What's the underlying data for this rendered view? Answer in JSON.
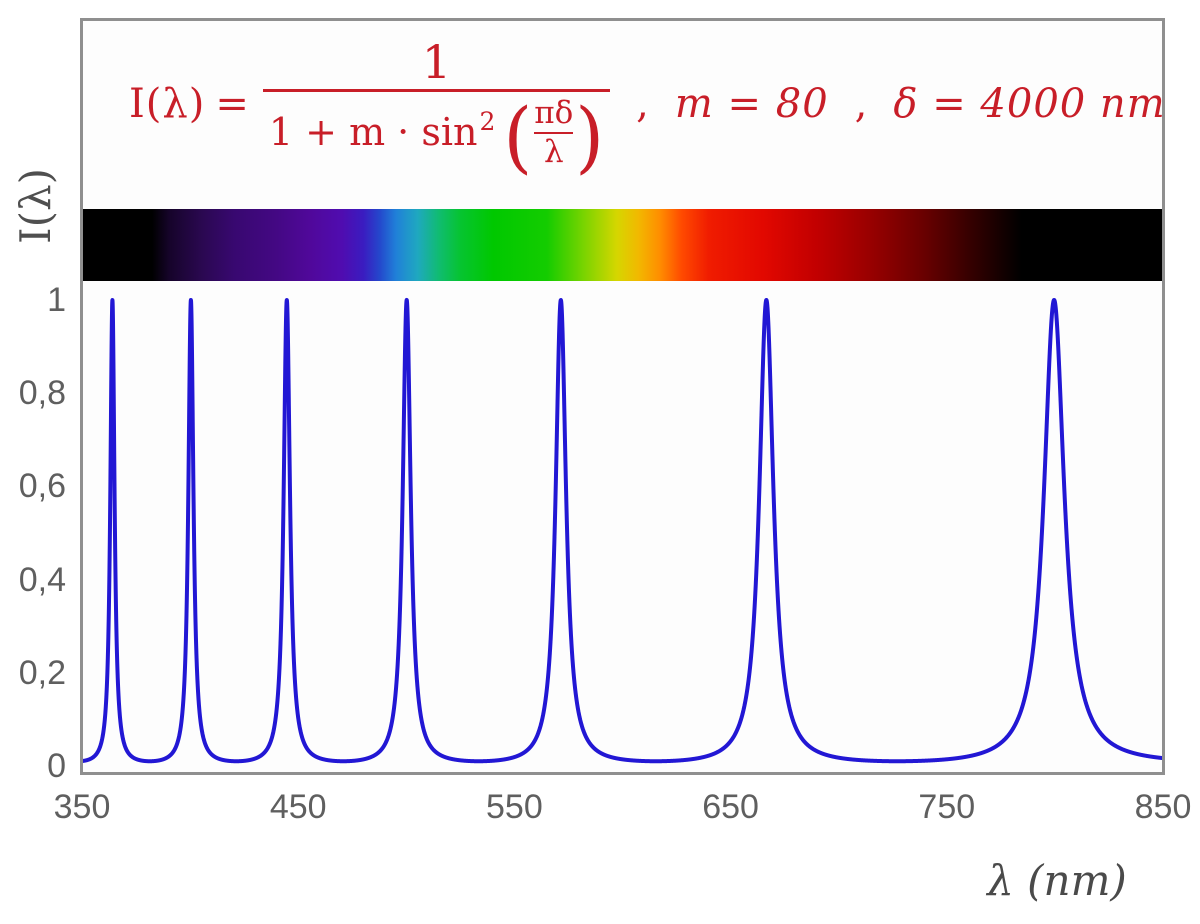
{
  "formula": {
    "lhs": "I(λ)",
    "equals": "=",
    "numerator": "1",
    "den_prefix": "1 + m · sin",
    "den_exponent": "2",
    "paren_open": "(",
    "paren_close": ")",
    "inner_numerator": "πδ",
    "inner_denominator": "λ",
    "separator1": ",",
    "param_m": "m = 80",
    "separator2": ",",
    "param_delta": "δ = 4000 nm",
    "color": "#c81e28"
  },
  "y_axis": {
    "label": "I(λ)",
    "ticks": [
      "1",
      "0,8",
      "0,6",
      "0,4",
      "0,2",
      "0"
    ],
    "tick_values": [
      1,
      0.8,
      0.6,
      0.4,
      0.2,
      0
    ]
  },
  "x_axis": {
    "label": "λ  (nm)",
    "ticks": [
      "350",
      "450",
      "550",
      "650",
      "750",
      "850"
    ],
    "tick_values": [
      350,
      450,
      550,
      650,
      750,
      850
    ]
  },
  "chart_data": {
    "type": "line",
    "title": "Airy transmission function I(λ) = 1 / (1 + m·sin²(πδ/λ))",
    "xlabel": "λ (nm)",
    "ylabel": "I(λ)",
    "m": 80,
    "delta_nm": 4000,
    "x_range_nm": [
      350,
      850
    ],
    "ylim": [
      0,
      1
    ],
    "x_ticks": [
      350,
      450,
      550,
      650,
      750,
      850
    ],
    "y_ticks": [
      0,
      0.2,
      0.4,
      0.6,
      0.8,
      1
    ],
    "peak_wavelengths_nm": [
      363.6,
      400.0,
      444.4,
      500.0,
      571.4,
      666.7,
      800.0
    ],
    "peak_orders": [
      11,
      10,
      9,
      8,
      7,
      6,
      5
    ],
    "baseline_intensity": 0.0123,
    "grid": false,
    "legend": false,
    "line_color": "#2217d4",
    "line_width": 4,
    "spectrum_bar": {
      "description": "visible-spectrum strip, black outside ~382-783 nm",
      "gradient_stops": [
        {
          "pos": 0.0,
          "color": "#000000"
        },
        {
          "pos": 6.4,
          "color": "#000000"
        },
        {
          "pos": 8.0,
          "color": "#16042a"
        },
        {
          "pos": 11.0,
          "color": "#2a0850"
        },
        {
          "pos": 14.0,
          "color": "#380870"
        },
        {
          "pos": 18.0,
          "color": "#440884"
        },
        {
          "pos": 21.0,
          "color": "#50089a"
        },
        {
          "pos": 24.0,
          "color": "#500cb0"
        },
        {
          "pos": 26.0,
          "color": "#3a1cc0"
        },
        {
          "pos": 27.5,
          "color": "#2448cc"
        },
        {
          "pos": 29.0,
          "color": "#2080d8"
        },
        {
          "pos": 31.0,
          "color": "#1fa8c0"
        },
        {
          "pos": 33.0,
          "color": "#10bc70"
        },
        {
          "pos": 35.0,
          "color": "#06c430"
        },
        {
          "pos": 38.0,
          "color": "#00c800"
        },
        {
          "pos": 43.0,
          "color": "#14cc00"
        },
        {
          "pos": 46.5,
          "color": "#7cd400"
        },
        {
          "pos": 49.5,
          "color": "#d6d600"
        },
        {
          "pos": 51.5,
          "color": "#f2b800"
        },
        {
          "pos": 53.5,
          "color": "#ff8c00"
        },
        {
          "pos": 55.5,
          "color": "#ff4a00"
        },
        {
          "pos": 58.0,
          "color": "#f01c00"
        },
        {
          "pos": 63.0,
          "color": "#e20800"
        },
        {
          "pos": 68.0,
          "color": "#c20000"
        },
        {
          "pos": 73.0,
          "color": "#980000"
        },
        {
          "pos": 78.0,
          "color": "#680000"
        },
        {
          "pos": 82.0,
          "color": "#380000"
        },
        {
          "pos": 85.5,
          "color": "#100000"
        },
        {
          "pos": 87.0,
          "color": "#000000"
        },
        {
          "pos": 100.0,
          "color": "#000000"
        }
      ]
    }
  }
}
